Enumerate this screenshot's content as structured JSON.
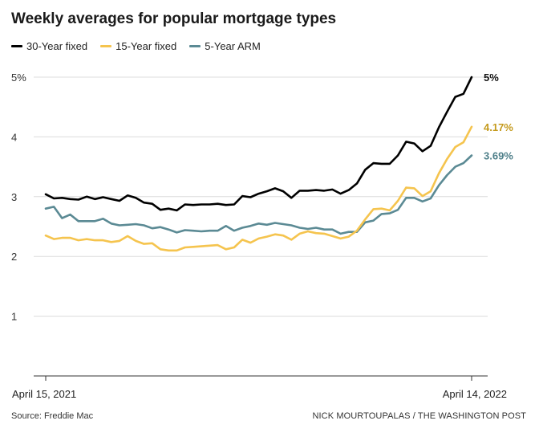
{
  "title": "Weekly averages for popular mortgage types",
  "source": "Source: Freddie Mac",
  "credit": "NICK MOURTOUPALAS / THE WASHINGTON POST",
  "chart_data": {
    "type": "line",
    "title": "Weekly averages for popular mortgage types",
    "xlabel": "",
    "ylabel": "",
    "ylim": [
      0,
      5
    ],
    "y_ticks": [
      {
        "value": 1,
        "label": "1"
      },
      {
        "value": 2,
        "label": "2"
      },
      {
        "value": 3,
        "label": "3"
      },
      {
        "value": 4,
        "label": "4"
      },
      {
        "value": 5,
        "label": "5%"
      }
    ],
    "x_ticks": [
      {
        "index": 0,
        "label": "April 15, 2021"
      },
      {
        "index": 52,
        "label": "April 14, 2022"
      }
    ],
    "grid": true,
    "legend_position": "top-left",
    "series": [
      {
        "name": "30-Year fixed",
        "color": "#000000",
        "end_label": "5%",
        "values": [
          3.04,
          2.97,
          2.98,
          2.96,
          2.95,
          3.0,
          2.96,
          2.99,
          2.96,
          2.93,
          3.02,
          2.98,
          2.9,
          2.88,
          2.78,
          2.8,
          2.77,
          2.87,
          2.86,
          2.87,
          2.87,
          2.88,
          2.86,
          2.87,
          3.01,
          2.99,
          3.05,
          3.09,
          3.14,
          3.09,
          2.98,
          3.1,
          3.1,
          3.11,
          3.1,
          3.12,
          3.05,
          3.11,
          3.22,
          3.45,
          3.56,
          3.55,
          3.55,
          3.69,
          3.92,
          3.89,
          3.76,
          3.85,
          4.16,
          4.42,
          4.67,
          4.72,
          5.0
        ]
      },
      {
        "name": "15-Year fixed",
        "color": "#f5c44e",
        "end_label": "4.17%",
        "values": [
          2.35,
          2.29,
          2.31,
          2.31,
          2.27,
          2.29,
          2.27,
          2.27,
          2.24,
          2.26,
          2.34,
          2.26,
          2.21,
          2.22,
          2.12,
          2.1,
          2.1,
          2.15,
          2.16,
          2.17,
          2.18,
          2.19,
          2.12,
          2.15,
          2.28,
          2.23,
          2.3,
          2.33,
          2.37,
          2.35,
          2.28,
          2.38,
          2.42,
          2.39,
          2.38,
          2.34,
          2.3,
          2.33,
          2.43,
          2.62,
          2.79,
          2.8,
          2.77,
          2.93,
          3.15,
          3.14,
          3.01,
          3.09,
          3.39,
          3.63,
          3.83,
          3.91,
          4.17
        ]
      },
      {
        "name": "5-Year ARM",
        "color": "#5b8a94",
        "end_label": "3.69%",
        "values": [
          2.8,
          2.83,
          2.64,
          2.7,
          2.59,
          2.59,
          2.59,
          2.63,
          2.55,
          2.52,
          2.53,
          2.54,
          2.52,
          2.47,
          2.49,
          2.45,
          2.4,
          2.44,
          2.43,
          2.42,
          2.43,
          2.43,
          2.51,
          2.43,
          2.48,
          2.51,
          2.55,
          2.53,
          2.56,
          2.54,
          2.52,
          2.48,
          2.46,
          2.48,
          2.45,
          2.45,
          2.38,
          2.41,
          2.41,
          2.57,
          2.6,
          2.71,
          2.72,
          2.78,
          2.98,
          2.98,
          2.92,
          2.97,
          3.19,
          3.36,
          3.5,
          3.56,
          3.69
        ]
      }
    ]
  }
}
